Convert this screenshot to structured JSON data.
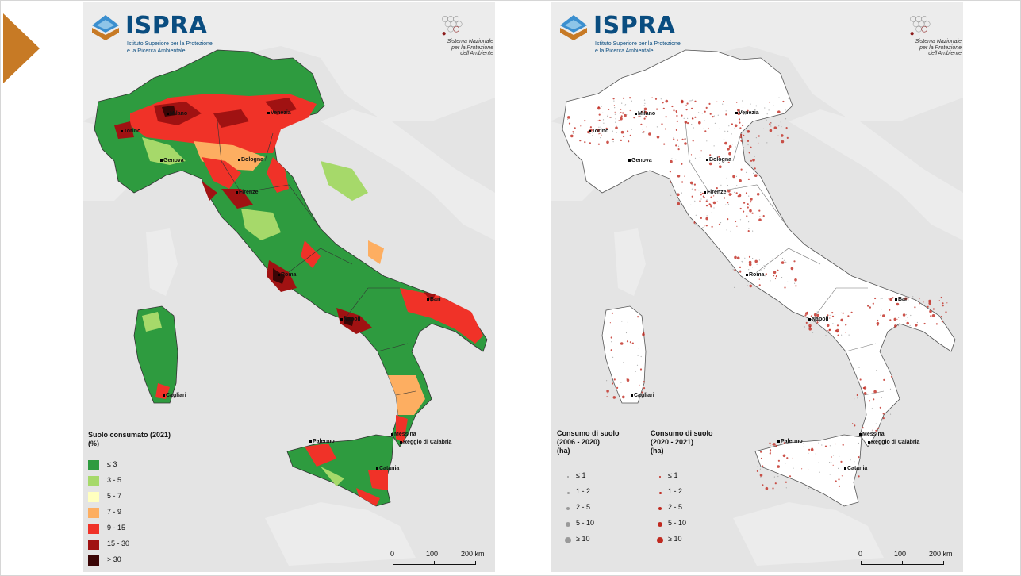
{
  "slide": {
    "arrow_color": "#c77a25"
  },
  "branding": {
    "logo_name": "ISPRA",
    "logo_subtitle_line1": "Istituto Superiore per la Protezione",
    "logo_subtitle_line2": "e la Ricerca Ambientale",
    "snpa_line1": "Sistema Nazionale",
    "snpa_line2": "per la Protezione",
    "snpa_line3": "dell'Ambiente"
  },
  "cities": {
    "milano": "Milano",
    "torino": "Torino",
    "venezia": "Venezia",
    "genova": "Genova",
    "bologna": "Bologna",
    "firenze": "Firenze",
    "roma": "Roma",
    "napoli": "Napoli",
    "bari": "Bari",
    "cagliari": "Cagliari",
    "palermo": "Palermo",
    "messina": "Messina",
    "reggio": "Reggio di Calabria",
    "catania": "Catania"
  },
  "left_map": {
    "legend_title_line1": "Suolo consumato (2021)",
    "legend_title_line2": "(%)",
    "classes": [
      {
        "label": "≤ 3",
        "color": "#2e9b3f"
      },
      {
        "label": "3 - 5",
        "color": "#a6d96a"
      },
      {
        "label": "5 - 7",
        "color": "#ffffbf"
      },
      {
        "label": "7 - 9",
        "color": "#fdae61"
      },
      {
        "label": "9 - 15",
        "color": "#f03228"
      },
      {
        "label": "15 - 30",
        "color": "#a01212"
      },
      {
        "label": "> 30",
        "color": "#3a0505"
      }
    ]
  },
  "right_map": {
    "legend1_line1": "Consumo di suolo",
    "legend1_line2": "(2006 - 2020)",
    "legend1_line3": "(ha)",
    "legend2_line1": "Consumo di suolo",
    "legend2_line2": "(2020 - 2021)",
    "legend2_line3": "(ha)",
    "classes_grey": [
      "≤ 1",
      "1 - 2",
      "2 - 5",
      "5 - 10",
      "≥ 10"
    ],
    "classes_red": [
      "≤ 1",
      "1 - 2",
      "2 - 5",
      "5 - 10",
      "≥ 10"
    ],
    "grey_color": "#9a9a9a",
    "red_color": "#c0291f"
  },
  "scale": {
    "zero": "0",
    "mid": "100",
    "end": "200 km"
  },
  "colors": {
    "sea": "#e4e4e4",
    "land_grey": "#ffffff",
    "country_outline": "#555555"
  }
}
